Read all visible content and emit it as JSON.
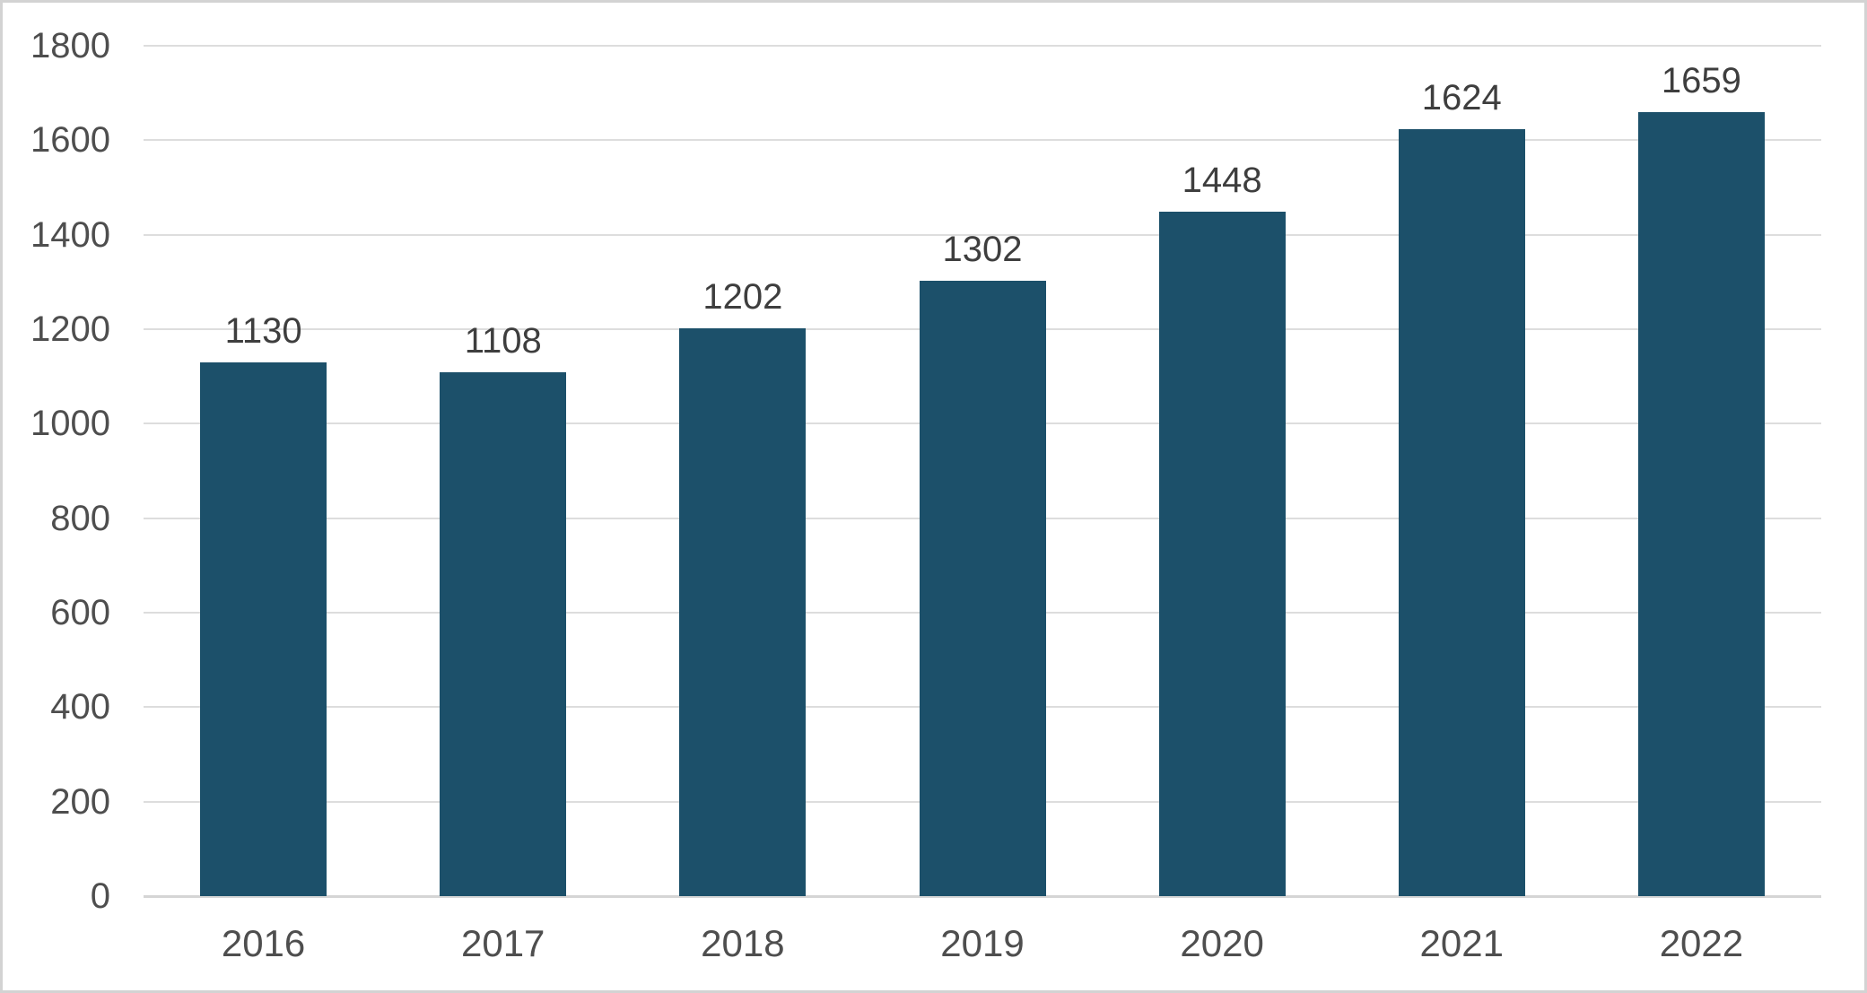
{
  "chart_data": {
    "type": "bar",
    "categories": [
      "2016",
      "2017",
      "2018",
      "2019",
      "2020",
      "2021",
      "2022"
    ],
    "values": [
      1130,
      1108,
      1202,
      1302,
      1448,
      1624,
      1659
    ],
    "y_ticks": [
      0,
      200,
      400,
      600,
      800,
      1000,
      1200,
      1400,
      1600,
      1800
    ],
    "ylim": [
      0,
      1800
    ],
    "ytick_step": 200,
    "grid": "horizontal",
    "legend": "none",
    "data_labels_shown": true,
    "colors": {
      "bar": "#1C506A",
      "gridline": "#dddddd",
      "axis_baseline": "#d5d5d5",
      "axis_text": "#4e4e4e",
      "data_label_text": "#3e3e3e",
      "card_border": "#d3d3d3",
      "background": "#ffffff"
    }
  }
}
